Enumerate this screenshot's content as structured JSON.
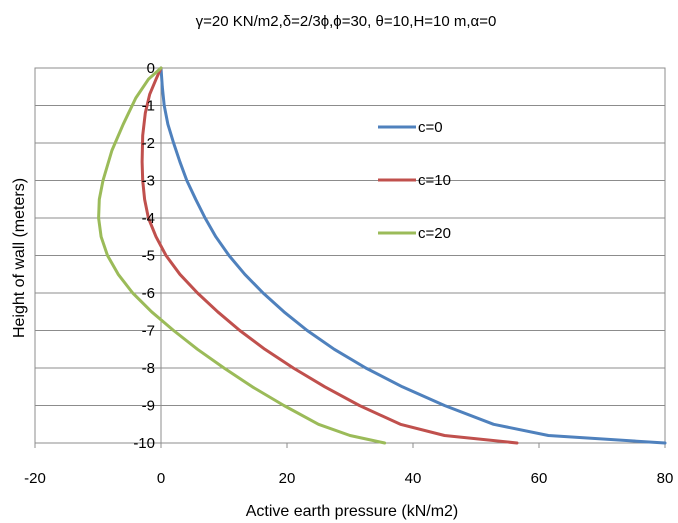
{
  "chart_data": {
    "type": "line",
    "title": "γ=20 KN/m2,δ=2/3ϕ,ϕ=30, θ=10,H=10 m,α=0",
    "xlabel": "Active earth pressure (kN/m2)",
    "ylabel": "Height of wall (meters)",
    "xlim": [
      -20,
      80
    ],
    "ylim": [
      -10,
      0
    ],
    "x_ticks": [
      -20,
      0,
      20,
      40,
      60,
      80
    ],
    "y_ticks": [
      0,
      -1,
      -2,
      -3,
      -4,
      -5,
      -6,
      -7,
      -8,
      -9,
      -10
    ],
    "grid": "horizontal",
    "legend_position": "right",
    "series": [
      {
        "name": "c=0",
        "color": "#4F81BD",
        "points": [
          [
            0,
            0
          ],
          [
            0.2,
            -0.5
          ],
          [
            0.5,
            -1
          ],
          [
            1.1,
            -1.5
          ],
          [
            2.0,
            -2
          ],
          [
            3.0,
            -2.5
          ],
          [
            4.1,
            -3
          ],
          [
            5.5,
            -3.5
          ],
          [
            7.0,
            -4
          ],
          [
            8.7,
            -4.5
          ],
          [
            10.8,
            -5
          ],
          [
            13.3,
            -5.5
          ],
          [
            16.2,
            -6
          ],
          [
            19.5,
            -6.5
          ],
          [
            23.2,
            -7
          ],
          [
            27.5,
            -7.5
          ],
          [
            32.5,
            -8
          ],
          [
            38.3,
            -8.5
          ],
          [
            45.0,
            -9
          ],
          [
            52.8,
            -9.5
          ],
          [
            61.5,
            -9.8
          ],
          [
            80.0,
            -10
          ]
        ]
      },
      {
        "name": "c=10",
        "color": "#C0504D",
        "points": [
          [
            0,
            0
          ],
          [
            -0.8,
            -0.3
          ],
          [
            -1.8,
            -0.7
          ],
          [
            -2.5,
            -1.2
          ],
          [
            -2.9,
            -1.8
          ],
          [
            -3.0,
            -2.5
          ],
          [
            -2.9,
            -3
          ],
          [
            -2.6,
            -3.5
          ],
          [
            -2.0,
            -4
          ],
          [
            -0.8,
            -4.5
          ],
          [
            0.8,
            -5
          ],
          [
            3.0,
            -5.5
          ],
          [
            5.8,
            -6
          ],
          [
            9.0,
            -6.5
          ],
          [
            12.5,
            -7
          ],
          [
            16.5,
            -7.5
          ],
          [
            21.0,
            -8
          ],
          [
            26.0,
            -8.5
          ],
          [
            31.5,
            -9
          ],
          [
            38.0,
            -9.5
          ],
          [
            45.0,
            -9.8
          ],
          [
            56.5,
            -10
          ]
        ]
      },
      {
        "name": "c=20",
        "color": "#9BBB59",
        "points": [
          [
            0,
            0
          ],
          [
            -2.0,
            -0.3
          ],
          [
            -4.0,
            -0.8
          ],
          [
            -6.0,
            -1.5
          ],
          [
            -7.8,
            -2.2
          ],
          [
            -9.2,
            -3
          ],
          [
            -9.8,
            -3.5
          ],
          [
            -9.9,
            -4
          ],
          [
            -9.5,
            -4.5
          ],
          [
            -8.5,
            -5
          ],
          [
            -6.8,
            -5.5
          ],
          [
            -4.5,
            -6
          ],
          [
            -1.5,
            -6.5
          ],
          [
            2.0,
            -7
          ],
          [
            5.8,
            -7.5
          ],
          [
            10.0,
            -8
          ],
          [
            14.5,
            -8.5
          ],
          [
            19.5,
            -9
          ],
          [
            25.0,
            -9.5
          ],
          [
            30.0,
            -9.8
          ],
          [
            35.5,
            -10
          ]
        ]
      }
    ]
  }
}
